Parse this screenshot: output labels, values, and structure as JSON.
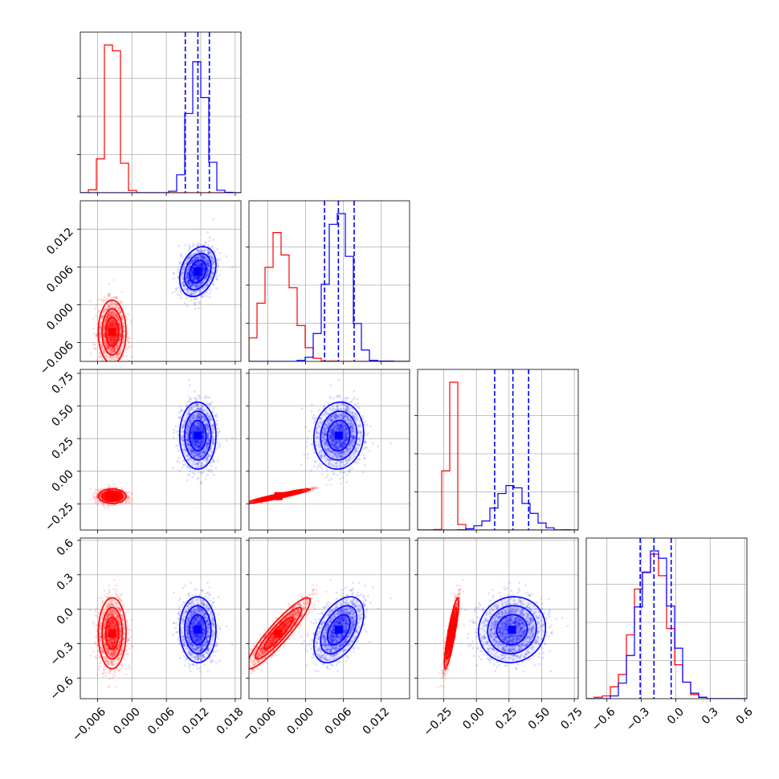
{
  "chart_data": {
    "type": "corner",
    "dimensions": 4,
    "colors": {
      "series_a": "#ff0000",
      "series_b": "#0000ff"
    },
    "grid": true,
    "axes": [
      {
        "range": [
          -0.009,
          0.019
        ],
        "ticks": [
          -0.006,
          0.0,
          0.006,
          0.012,
          0.018
        ],
        "tick_labels": [
          "−0.006",
          "0.000",
          "0.006",
          "0.012",
          "0.018"
        ]
      },
      {
        "range": [
          -0.009,
          0.0165
        ],
        "ticks": [
          -0.006,
          0.0,
          0.006,
          0.012
        ],
        "tick_labels": [
          "−0.006",
          "0.000",
          "0.006",
          "0.012"
        ]
      },
      {
        "range": [
          -0.45,
          0.78
        ],
        "ticks": [
          -0.25,
          0.0,
          0.25,
          0.5,
          0.75
        ],
        "tick_labels": [
          "−0.25",
          "0.00",
          "0.25",
          "0.50",
          "0.75"
        ]
      },
      {
        "range": [
          -0.78,
          0.62
        ],
        "ticks": [
          -0.6,
          -0.3,
          0.0,
          0.3,
          0.6
        ],
        "tick_labels": [
          "−0.6",
          "−0.3",
          "0.0",
          "0.3",
          "0.6"
        ]
      }
    ],
    "series": [
      {
        "means": [
          -0.0035,
          -0.0043,
          -0.19,
          -0.21
        ],
        "stds": [
          0.0011,
          0.0023,
          0.025,
          0.14
        ]
      },
      {
        "means": [
          0.0115,
          0.0052,
          0.27,
          -0.18
        ],
        "stds": [
          0.0014,
          0.0018,
          0.12,
          0.13
        ]
      }
    ],
    "quantile_lines": [
      {
        "dimension": 0,
        "values": [
          0.0093,
          0.0115,
          0.0135
        ]
      },
      {
        "dimension": 1,
        "values": [
          0.003,
          0.0052,
          0.0077
        ]
      },
      {
        "dimension": 2,
        "values": [
          0.14,
          0.28,
          0.4
        ]
      },
      {
        "dimension": 3,
        "values": [
          -0.31,
          -0.19,
          -0.04
        ]
      }
    ]
  }
}
